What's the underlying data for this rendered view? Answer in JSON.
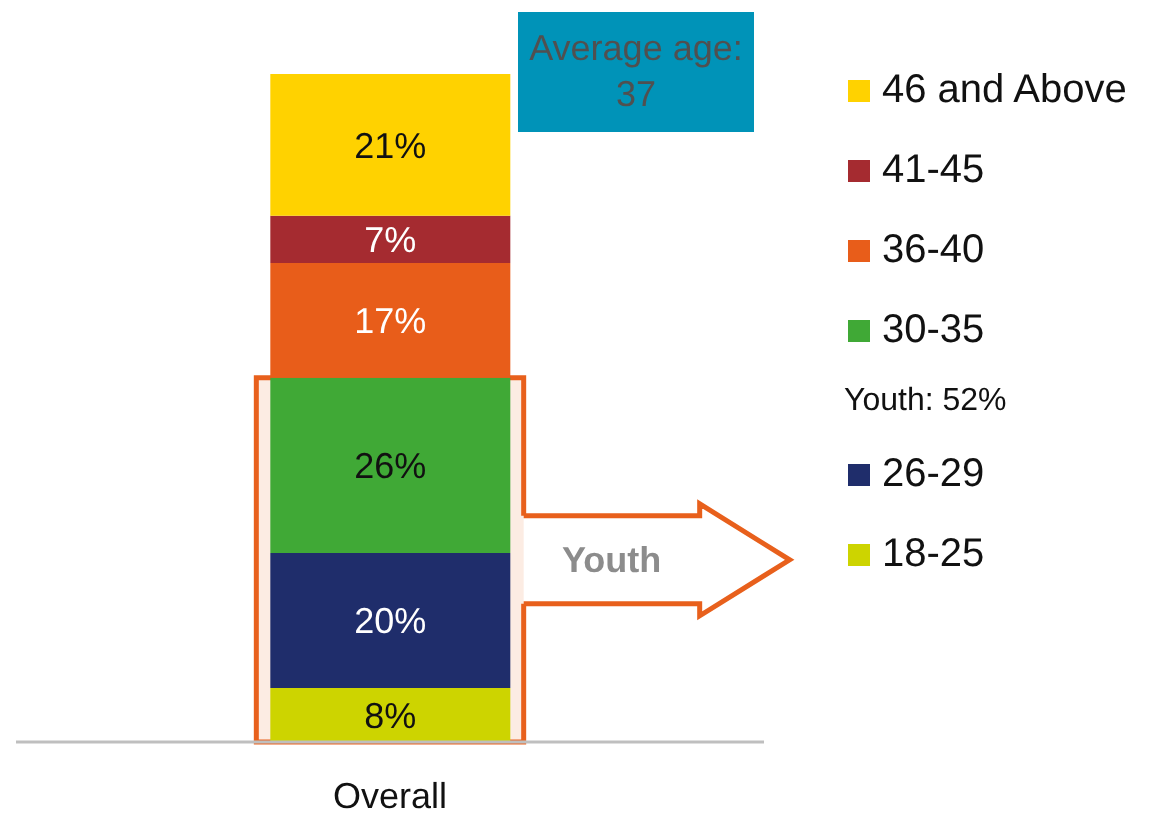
{
  "chart_data": {
    "type": "bar",
    "stacked": true,
    "categories": [
      "Overall"
    ],
    "series": [
      {
        "name": "18-25",
        "color": "#cdd400",
        "values": [
          8
        ],
        "value_labels": [
          "8%"
        ]
      },
      {
        "name": "26-29",
        "color": "#1f2d6b",
        "values": [
          20
        ],
        "value_labels": [
          "20%"
        ]
      },
      {
        "name": "30-35",
        "color": "#40a936",
        "values": [
          26
        ],
        "value_labels": [
          "26%"
        ]
      },
      {
        "name": "36-40",
        "color": "#e85d1a",
        "values": [
          17
        ],
        "value_labels": [
          "17%"
        ]
      },
      {
        "name": "41-45",
        "color": "#a52b30",
        "values": [
          7
        ],
        "value_labels": [
          "7%"
        ]
      },
      {
        "name": "46 and Above",
        "color": "#ffd200",
        "values": [
          21
        ],
        "value_labels": [
          "21%"
        ]
      }
    ],
    "bands": [
      {
        "axis": "y",
        "from": 0,
        "to": 54,
        "label": "Youth",
        "color": "#e8601c"
      }
    ],
    "annotations": [
      "Average age: 37",
      "Youth: 52%"
    ],
    "legend": "right"
  }
}
